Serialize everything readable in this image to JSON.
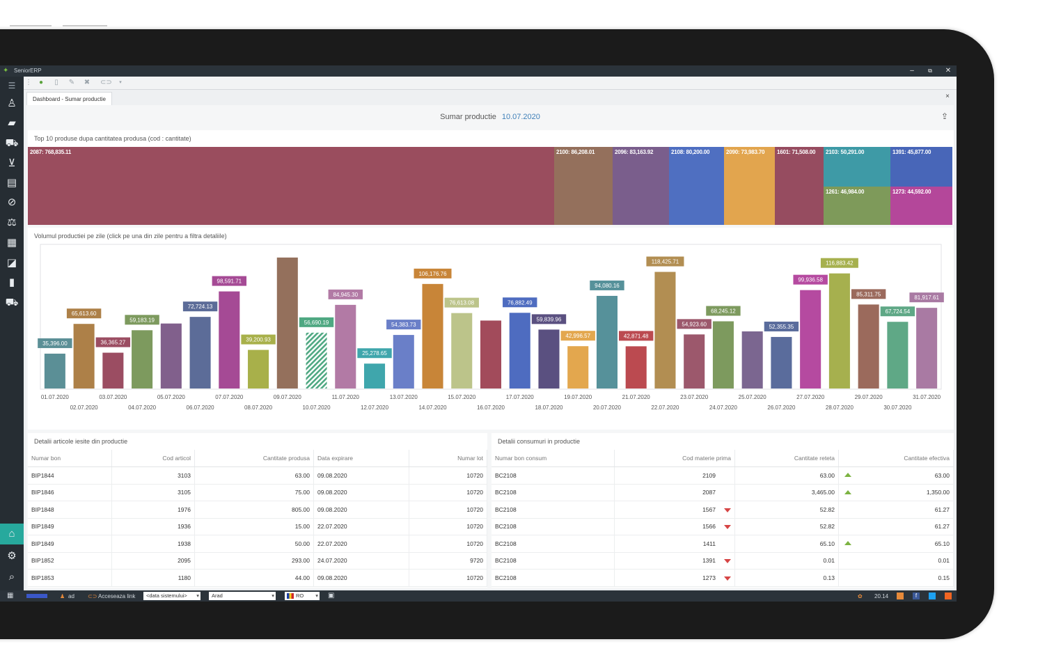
{
  "window": {
    "title": "SeniorERP",
    "minimize": "–",
    "restore": "⧉",
    "close": "✕"
  },
  "tab": {
    "label": "Dashboard - Sumar productie",
    "close": "×"
  },
  "header": {
    "title": "Sumar productie",
    "date": "10.07.2020"
  },
  "treemap": {
    "title": "Top 10 produse dupa cantitatea produsa (cod : cantitate)",
    "items": [
      {
        "label": "2087: 768,835.11",
        "color": "#9a4d5e"
      },
      {
        "label": "2100: 86,208.01",
        "color": "#94705c"
      },
      {
        "label": "2096: 83,163.92",
        "color": "#7a5e8c"
      },
      {
        "label": "2108: 80,200.00",
        "color": "#4f6fc1"
      },
      {
        "label": "2090: 73,983.70",
        "color": "#e2a54e"
      },
      {
        "label": "1601: 71,508.00",
        "color": "#964c60"
      },
      {
        "label": "2103: 50,291.00",
        "color": "#3e9aa6"
      },
      {
        "label": "1391: 45,877.00",
        "color": "#4866b8"
      },
      {
        "label": "1261: 46,984.00",
        "color": "#7e9a5a"
      },
      {
        "label": "1273: 44,592.00",
        "color": "#b4479a"
      }
    ]
  },
  "chart_data": {
    "type": "bar",
    "title": "Volumul productiei pe zile (click pe una din zile pentru a filtra detaliile)",
    "categories": [
      "01.07.2020",
      "02.07.2020",
      "03.07.2020",
      "04.07.2020",
      "05.07.2020",
      "06.07.2020",
      "07.07.2020",
      "08.07.2020",
      "09.07.2020",
      "10.07.2020",
      "11.07.2020",
      "12.07.2020",
      "13.07.2020",
      "14.07.2020",
      "15.07.2020",
      "16.07.2020",
      "17.07.2020",
      "18.07.2020",
      "19.07.2020",
      "20.07.2020",
      "21.07.2020",
      "22.07.2020",
      "23.07.2020",
      "24.07.2020",
      "25.07.2020",
      "26.07.2020",
      "27.07.2020",
      "28.07.2020",
      "29.07.2020",
      "30.07.2020",
      "31.07.2020"
    ],
    "values": [
      35396.0,
      65613.6,
      36365.27,
      59183.19,
      66000,
      72724.13,
      98591.71,
      39200.93,
      133000,
      56690.19,
      84945.3,
      25278.65,
      54383.73,
      106176.76,
      76613.08,
      69000,
      76882.49,
      59839.96,
      42996.57,
      94080.16,
      42871.48,
      118425.71,
      54923.6,
      68245.12,
      58000,
      52355.35,
      99936.58,
      116883.42,
      85311.75,
      67724.54,
      81917.61
    ],
    "labels": [
      "35,396.00",
      "65,613.60",
      "36,365.27",
      "59,183.19",
      "",
      "72,724.13",
      "98,591.71",
      "39,200.93",
      "",
      "56,690.19",
      "84,945.30",
      "25,278.65",
      "54,383.73",
      "106,176.76",
      "76,613.08",
      "",
      "76,882.49",
      "59,839.96",
      "42,996.57",
      "94,080.16",
      "42,871.48",
      "118,425.71",
      "54,923.60",
      "68,245.12",
      "",
      "52,355.35",
      "99,936.58",
      "116,883.42",
      "85,311.75",
      "67,724.54",
      "81,917.61"
    ],
    "colors": [
      "#5b8f96",
      "#ad8048",
      "#9b4d62",
      "#7d9a5e",
      "#81608c",
      "#5c6c98",
      "#a54a95",
      "#a8b04a",
      "#94705c",
      "#4fa882",
      "#b27aa5",
      "#3fa6ac",
      "#6a7fc8",
      "#c88538",
      "#bcc48a",
      "#a24b5b",
      "#4e6cc0",
      "#5a5080",
      "#e3a74e",
      "#56919a",
      "#bb4a50",
      "#b28e52",
      "#9c586c",
      "#7d9a5e",
      "#7b6690",
      "#5a6c9c",
      "#b54aa0",
      "#a6b04e",
      "#9b6a5c",
      "#5fa886",
      "#a97aa3"
    ],
    "ylim": [
      0,
      140000
    ]
  },
  "left_table": {
    "title": "Detalii articole iesite din productie",
    "columns": [
      "Numar bon",
      "Cod articol",
      "Cantitate produsa",
      "Data expirare",
      "Numar lot"
    ],
    "rows": [
      [
        "BIP1844",
        "3103",
        "63.00",
        "09.08.2020",
        "10720"
      ],
      [
        "BIP1846",
        "3105",
        "75.00",
        "09.08.2020",
        "10720"
      ],
      [
        "BIP1848",
        "1976",
        "805.00",
        "09.08.2020",
        "10720"
      ],
      [
        "BIP1849",
        "1936",
        "15.00",
        "22.07.2020",
        "10720"
      ],
      [
        "BIP1849",
        "1938",
        "50.00",
        "22.07.2020",
        "10720"
      ],
      [
        "BIP1852",
        "2095",
        "293.00",
        "24.07.2020",
        "9720"
      ],
      [
        "BIP1853",
        "1180",
        "44.00",
        "09.08.2020",
        "10720"
      ]
    ]
  },
  "right_table": {
    "title": "Detalii consumuri in productie",
    "columns": [
      "Numar bon consum",
      "Cod materie prima",
      "Cantitate reteta",
      "Cantitate efectiva"
    ],
    "rows": [
      {
        "bon": "BC2108",
        "cod": "2109",
        "reteta": "63.00",
        "trend": "up",
        "efectiva": "63.00"
      },
      {
        "bon": "BC2108",
        "cod": "2087",
        "reteta": "3,465.00",
        "trend": "up",
        "efectiva": "1,350.00"
      },
      {
        "bon": "BC2108",
        "cod": "1567",
        "reteta": "52.82",
        "trend": "down",
        "efectiva": "61.27"
      },
      {
        "bon": "BC2108",
        "cod": "1566",
        "reteta": "52.82",
        "trend": "down",
        "efectiva": "61.27"
      },
      {
        "bon": "BC2108",
        "cod": "1411",
        "reteta": "65.10",
        "trend": "up",
        "efectiva": "65.10"
      },
      {
        "bon": "BC2108",
        "cod": "1391",
        "reteta": "0.01",
        "trend": "down",
        "efectiva": "0.01"
      },
      {
        "bon": "BC2108",
        "cod": "1273",
        "reteta": "0.13",
        "trend": "down",
        "efectiva": "0.15"
      }
    ]
  },
  "statusbar": {
    "user": "ad",
    "link": "Acceseaza link",
    "date_combo": "<data sistemului>",
    "location": "Arad",
    "lang": "RO",
    "time": "20.14"
  }
}
